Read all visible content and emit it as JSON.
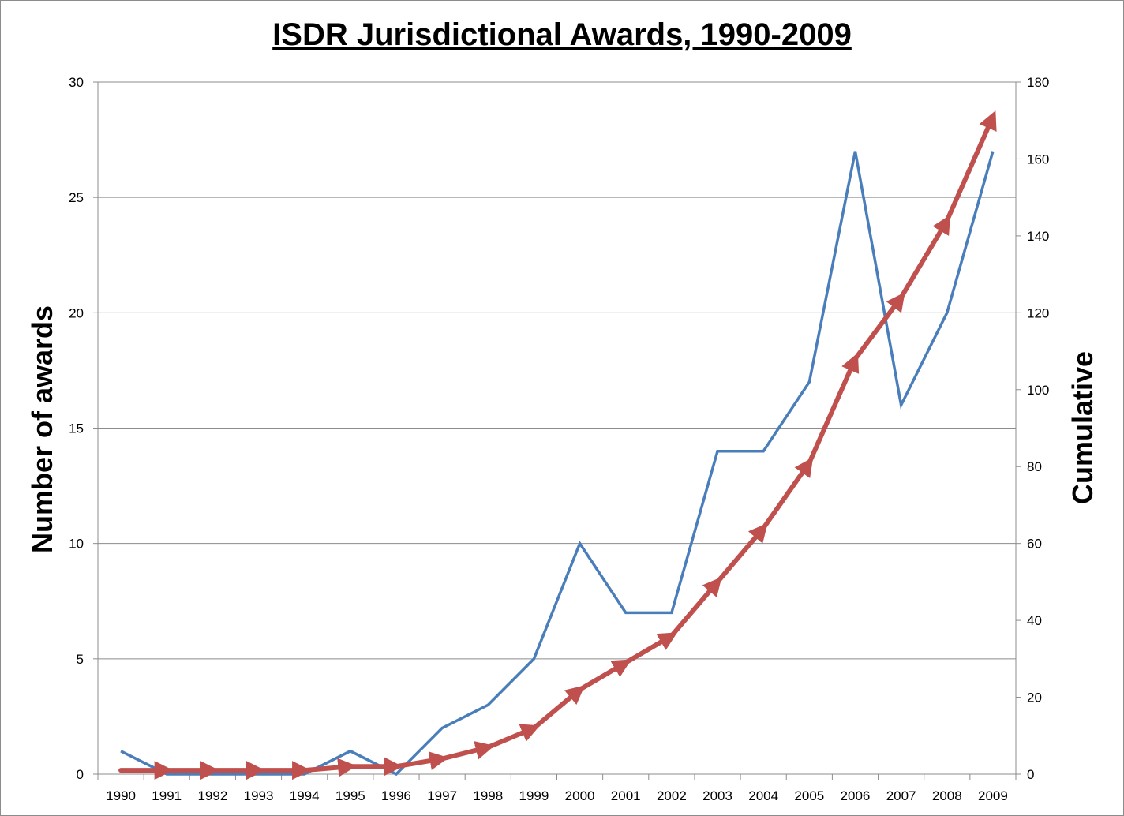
{
  "chart_data": {
    "type": "line",
    "title": "ISDR Jurisdictional Awards, 1990-2009",
    "ylabel": "Number of awards",
    "y2label": "Cumulative",
    "x": [
      "1990",
      "1991",
      "1992",
      "1993",
      "1994",
      "1995",
      "1996",
      "1997",
      "1998",
      "1999",
      "2000",
      "2001",
      "2002",
      "2003",
      "2004",
      "2005",
      "2006",
      "2007",
      "2008",
      "2009"
    ],
    "ylim": [
      0,
      30
    ],
    "y2lim": [
      0,
      180
    ],
    "yticks": [
      "0",
      "5",
      "10",
      "15",
      "20",
      "25",
      "30"
    ],
    "y2ticks": [
      "0",
      "20",
      "40",
      "60",
      "80",
      "100",
      "120",
      "140",
      "160",
      "180"
    ],
    "grid": true,
    "series": [
      {
        "axis": "left",
        "color": "#4a7ebb",
        "values": [
          1,
          0,
          0,
          0,
          0,
          1,
          0,
          2,
          3,
          5,
          10,
          7,
          7,
          14,
          14,
          17,
          27,
          16,
          20,
          27
        ]
      },
      {
        "axis": "right",
        "color": "#c0504d",
        "marker": "arrow",
        "values": [
          1,
          1,
          1,
          1,
          1,
          2,
          2,
          4,
          7,
          12,
          22,
          29,
          36,
          50,
          64,
          81,
          108,
          124,
          144,
          171
        ]
      }
    ]
  }
}
